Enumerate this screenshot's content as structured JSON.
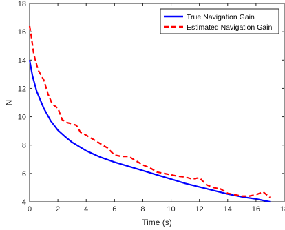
{
  "chart_data": {
    "type": "line",
    "xlabel": "Time (s)",
    "ylabel": "N",
    "xlim": [
      0,
      18
    ],
    "ylim": [
      4,
      18
    ],
    "xticks": [
      0,
      2,
      4,
      6,
      8,
      10,
      12,
      14,
      16,
      18
    ],
    "yticks": [
      4,
      6,
      8,
      10,
      12,
      14,
      16,
      18
    ],
    "grid": false,
    "legend_position": "top-right",
    "series": [
      {
        "name": "True Navigation Gain",
        "color": "#0000ff",
        "style": "solid",
        "x": [
          0,
          0.2,
          0.5,
          1.0,
          1.5,
          2.0,
          2.5,
          3.0,
          4.0,
          5.0,
          6.0,
          7.0,
          8.0,
          9.0,
          10.0,
          11.0,
          12.0,
          13.0,
          14.0,
          15.0,
          16.0,
          17.0
        ],
        "y": [
          14.0,
          12.9,
          11.8,
          10.6,
          9.7,
          9.05,
          8.6,
          8.2,
          7.6,
          7.15,
          6.8,
          6.5,
          6.2,
          5.9,
          5.6,
          5.3,
          5.05,
          4.8,
          4.55,
          4.35,
          4.2,
          4.0
        ]
      },
      {
        "name": "Estimated Navigation Gain",
        "color": "#ff0000",
        "style": "dashed",
        "x": [
          0,
          0.1,
          0.3,
          0.6,
          1.0,
          1.3,
          1.6,
          2.0,
          2.3,
          2.6,
          3.0,
          3.3,
          3.6,
          4.0,
          4.5,
          5.0,
          5.5,
          6.0,
          6.5,
          7.0,
          7.5,
          8.0,
          8.5,
          9.0,
          9.5,
          10.0,
          10.5,
          11.0,
          11.5,
          12.0,
          12.5,
          13.0,
          13.5,
          14.0,
          14.5,
          15.0,
          15.5,
          16.0,
          16.5,
          17.0
        ],
        "y": [
          16.4,
          15.8,
          14.4,
          13.3,
          12.6,
          11.6,
          10.9,
          10.6,
          9.8,
          9.6,
          9.5,
          9.4,
          8.9,
          8.7,
          8.4,
          8.1,
          7.8,
          7.3,
          7.2,
          7.2,
          6.9,
          6.6,
          6.4,
          6.1,
          6.0,
          5.9,
          5.8,
          5.75,
          5.6,
          5.7,
          5.2,
          5.0,
          4.9,
          4.6,
          4.5,
          4.4,
          4.4,
          4.5,
          4.7,
          4.3
        ]
      }
    ]
  }
}
